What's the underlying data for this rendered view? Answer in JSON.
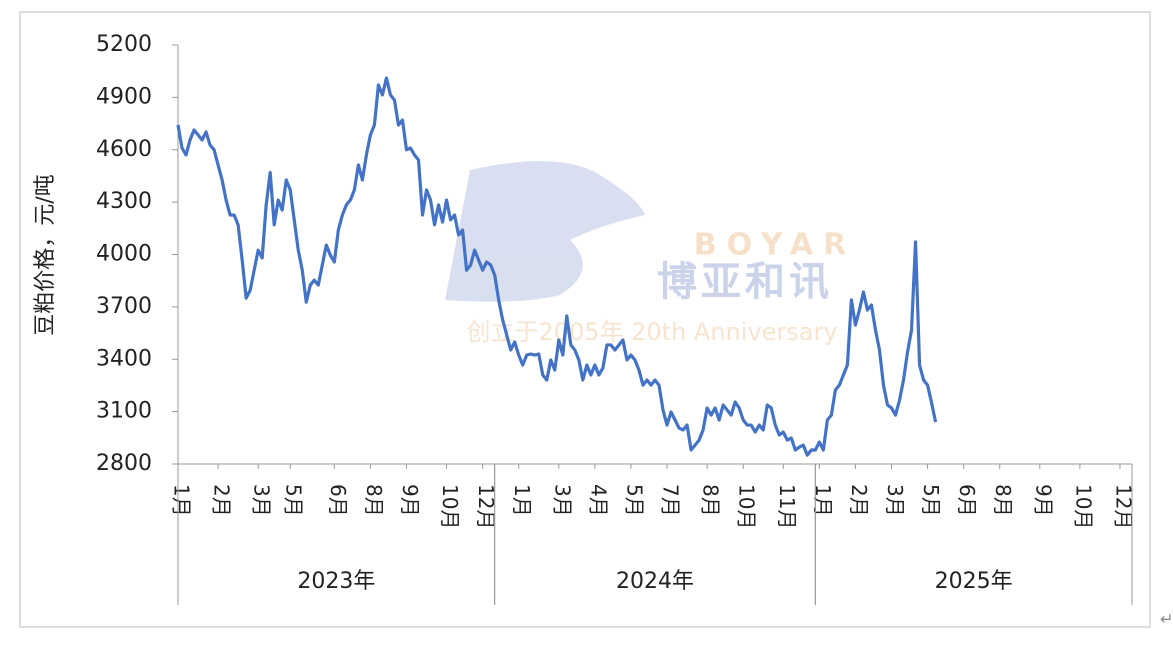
{
  "chart_data": {
    "type": "line",
    "y_label": "豆粕价格，元/吨",
    "ylim": [
      2800,
      5200
    ],
    "yticks": [
      2800,
      3100,
      3400,
      3700,
      4000,
      4300,
      4600,
      4900,
      5200
    ],
    "xlim": [
      0,
      238
    ],
    "xticks": [
      {
        "value": 0,
        "label": "1月"
      },
      {
        "value": 10,
        "label": "2月"
      },
      {
        "value": 20,
        "label": "3月"
      },
      {
        "value": 28,
        "label": "5月"
      },
      {
        "value": 39,
        "label": "6月"
      },
      {
        "value": 48,
        "label": "8月"
      },
      {
        "value": 57,
        "label": "9月"
      },
      {
        "value": 67,
        "label": "10月"
      },
      {
        "value": 76,
        "label": "12月"
      },
      {
        "value": 85,
        "label": "1月"
      },
      {
        "value": 95,
        "label": "3月"
      },
      {
        "value": 104,
        "label": "4月"
      },
      {
        "value": 113,
        "label": "5月"
      },
      {
        "value": 122,
        "label": "7月"
      },
      {
        "value": 132,
        "label": "8月"
      },
      {
        "value": 141,
        "label": "10月"
      },
      {
        "value": 151,
        "label": "11月"
      },
      {
        "value": 160,
        "label": "1月"
      },
      {
        "value": 169,
        "label": "2月"
      },
      {
        "value": 178,
        "label": "3月"
      },
      {
        "value": 187,
        "label": "5月"
      },
      {
        "value": 196,
        "label": "6月"
      },
      {
        "value": 205,
        "label": "8月"
      },
      {
        "value": 215,
        "label": "9月"
      },
      {
        "value": 225,
        "label": "10月"
      },
      {
        "value": 235,
        "label": "12月"
      }
    ],
    "x_groups": [
      {
        "label": "2023年",
        "range": [
          0,
          79
        ]
      },
      {
        "label": "2024年",
        "range": [
          79,
          159
        ]
      },
      {
        "label": "2025年",
        "range": [
          159,
          238
        ]
      }
    ],
    "grid": false,
    "x": [
      0,
      1,
      2,
      3,
      4,
      5,
      6,
      7,
      8,
      9,
      10,
      11,
      12,
      13,
      14,
      15,
      16,
      17,
      18,
      19,
      20,
      21,
      22,
      23,
      24,
      25,
      26,
      27,
      28,
      29,
      30,
      31,
      32,
      33,
      34,
      35,
      36,
      37,
      38,
      39,
      40,
      41,
      42,
      43,
      44,
      45,
      46,
      47,
      48,
      49,
      50,
      51,
      52,
      53,
      54,
      55,
      56,
      57,
      58,
      59,
      60,
      61,
      62,
      63,
      64,
      65,
      66,
      67,
      68,
      69,
      70,
      71,
      72,
      73,
      74,
      75,
      76,
      77,
      78,
      79,
      80,
      81,
      82,
      83,
      84,
      85,
      86,
      87,
      88,
      89,
      90,
      91,
      92,
      93,
      94,
      95,
      96,
      97,
      98,
      99,
      100,
      101,
      102,
      103,
      104,
      105,
      106,
      107,
      108,
      109,
      110,
      111,
      112,
      113,
      114,
      115,
      116,
      117,
      118,
      119,
      120,
      121,
      122,
      123,
      124,
      125,
      126,
      127,
      128,
      129,
      130,
      131,
      132,
      133,
      134,
      135,
      136,
      137,
      138,
      139,
      140,
      141,
      142,
      143,
      144,
      145,
      146,
      147,
      148,
      149,
      150,
      151,
      152,
      153,
      154,
      155,
      156,
      157,
      158,
      159,
      160,
      161,
      162,
      163,
      164,
      165,
      166,
      167,
      168,
      169,
      170,
      171,
      172,
      173,
      174,
      175,
      176,
      177,
      178,
      179,
      180,
      181,
      182,
      183,
      184,
      185,
      186,
      187,
      188,
      189
    ],
    "series": [
      {
        "name": "豆粕价格",
        "color": "#4472c4",
        "values": [
          4742,
          4610,
          4570,
          4656,
          4713,
          4685,
          4656,
          4702,
          4627,
          4600,
          4513,
          4427,
          4312,
          4226,
          4226,
          4170,
          3970,
          3750,
          3795,
          3910,
          4025,
          3980,
          4284,
          4470,
          4170,
          4312,
          4255,
          4427,
          4370,
          4198,
          4025,
          3910,
          3727,
          3825,
          3853,
          3825,
          3940,
          4054,
          3997,
          3957,
          4140,
          4226,
          4284,
          4312,
          4370,
          4513,
          4427,
          4570,
          4685,
          4742,
          4971,
          4914,
          5011,
          4914,
          4885,
          4742,
          4770,
          4600,
          4610,
          4570,
          4541,
          4226,
          4370,
          4312,
          4170,
          4284,
          4186,
          4312,
          4198,
          4226,
          4112,
          4140,
          3910,
          3940,
          4025,
          3968,
          3910,
          3957,
          3940,
          3883,
          3740,
          3625,
          3540,
          3453,
          3499,
          3424,
          3367,
          3424,
          3430,
          3424,
          3430,
          3310,
          3281,
          3396,
          3338,
          3510,
          3424,
          3648,
          3482,
          3453,
          3396,
          3281,
          3367,
          3310,
          3367,
          3310,
          3350,
          3482,
          3482,
          3453,
          3482,
          3510,
          3396,
          3424,
          3396,
          3338,
          3252,
          3281,
          3252,
          3281,
          3252,
          3109,
          3023,
          3098,
          3052,
          3006,
          2995,
          3023,
          2880,
          2908,
          2937,
          2995,
          3121,
          3080,
          3121,
          3052,
          3138,
          3109,
          3080,
          3155,
          3121,
          3052,
          3023,
          3023,
          2983,
          3023,
          2995,
          3138,
          3121,
          3023,
          2966,
          2983,
          2937,
          2949,
          2880,
          2897,
          2908,
          2851,
          2880,
          2880,
          2926,
          2880,
          3052,
          3080,
          3224,
          3252,
          3310,
          3367,
          3740,
          3596,
          3682,
          3785,
          3682,
          3711,
          3568,
          3453,
          3252,
          3138,
          3121,
          3080,
          3166,
          3281,
          3442,
          3568,
          4072,
          3367,
          3281,
          3252,
          3150,
          3040
        ]
      }
    ],
    "watermark": {
      "brand_en": "BOYAR",
      "brand_cn": "博亚和讯",
      "slogan": "创立于2005年 20th Anniversary"
    }
  },
  "paragraph_mark": "↵"
}
